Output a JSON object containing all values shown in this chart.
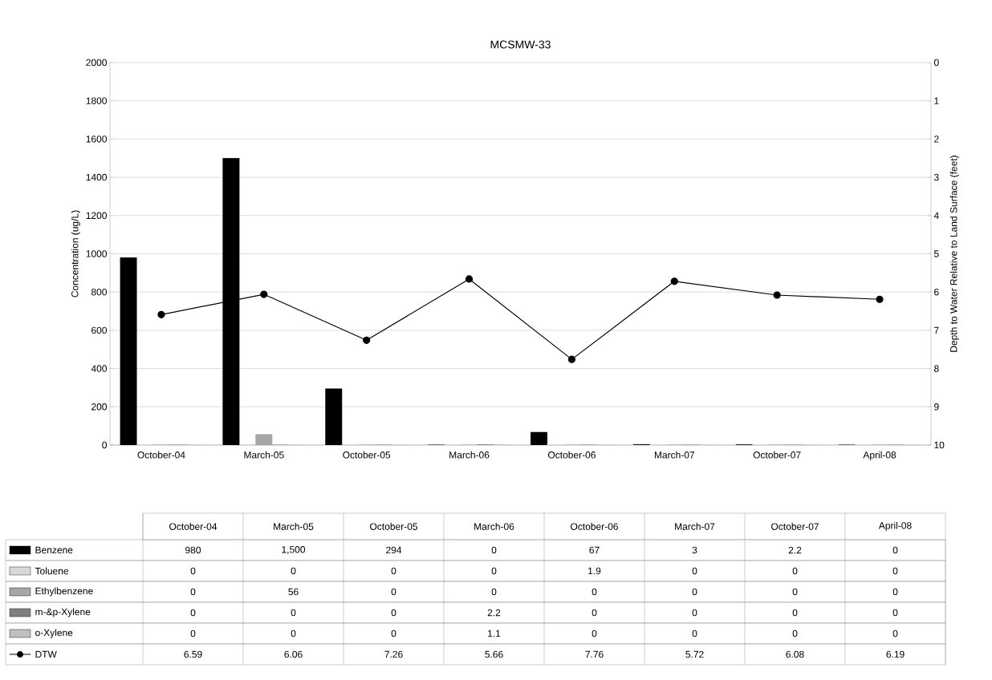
{
  "chart_data": {
    "type": "bar",
    "title": "MCSMW-33",
    "categories": [
      "October-04",
      "March-05",
      "October-05",
      "March-06",
      "October-06",
      "March-07",
      "October-07",
      "April-08"
    ],
    "ylabel": "Concentration (ug/L)",
    "y2label": "Depth to Water Relative to Land Surface (feet)",
    "ylim": [
      0,
      2000
    ],
    "yticks": [
      0,
      200,
      400,
      600,
      800,
      1000,
      1200,
      1400,
      1600,
      1800,
      2000
    ],
    "y2lim": [
      10,
      0
    ],
    "y2ticks": [
      0,
      1,
      2,
      3,
      4,
      5,
      6,
      7,
      8,
      9,
      10
    ],
    "grid": "y",
    "legend": "bottom",
    "marker": "circle",
    "line_style": "solid",
    "series": [
      {
        "name": "Benzene",
        "color": "#000000",
        "values": [
          980,
          1500,
          294,
          0,
          67,
          3,
          2.2,
          0
        ],
        "value_labels": [
          "980",
          "1,500",
          "294",
          "0",
          "67",
          "3",
          "2.2",
          "0"
        ]
      },
      {
        "name": "Toluene",
        "color": "#d9d9d9",
        "values": [
          0,
          0,
          0,
          0,
          1.9,
          0,
          0,
          0
        ],
        "value_labels": [
          "0",
          "0",
          "0",
          "0",
          "1.9",
          "0",
          "0",
          "0"
        ]
      },
      {
        "name": "Ethylbenzene",
        "color": "#a6a6a6",
        "values": [
          0,
          56,
          0,
          0,
          0,
          0,
          0,
          0
        ],
        "value_labels": [
          "0",
          "56",
          "0",
          "0",
          "0",
          "0",
          "0",
          "0"
        ]
      },
      {
        "name": "m-&p-Xylene",
        "color": "#7f7f7f",
        "values": [
          0,
          0,
          0,
          2.2,
          0,
          0,
          0,
          0
        ],
        "value_labels": [
          "0",
          "0",
          "0",
          "2.2",
          "0",
          "0",
          "0",
          "0"
        ]
      },
      {
        "name": "o-Xylene",
        "color": "#bfbfbf",
        "values": [
          0,
          0,
          0,
          1.1,
          0,
          0,
          0,
          0
        ],
        "value_labels": [
          "0",
          "0",
          "0",
          "1.1",
          "0",
          "0",
          "0",
          "0"
        ]
      },
      {
        "name": "DTW",
        "type": "line",
        "axis": "y2",
        "color": "#000000",
        "values": [
          6.59,
          6.06,
          7.26,
          5.66,
          7.76,
          5.72,
          6.08,
          6.19
        ],
        "value_labels": [
          "6.59",
          "6.06",
          "7.26",
          "5.66",
          "7.76",
          "5.72",
          "6.08",
          "6.19"
        ]
      }
    ]
  }
}
